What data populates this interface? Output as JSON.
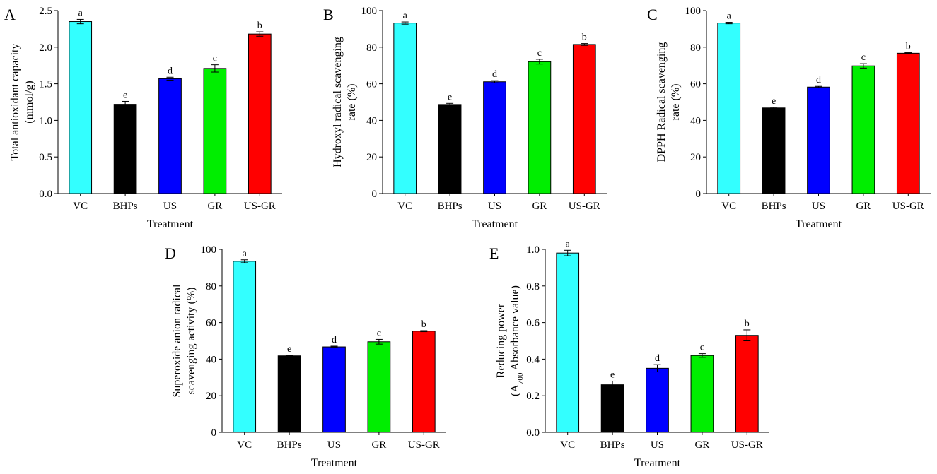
{
  "chart_data": [
    {
      "type": "bar",
      "panel": "A",
      "title": "",
      "xlabel": "Treatment",
      "ylabel": [
        "Total antioxidant capacity",
        "(mmol/g)"
      ],
      "categories": [
        "VC",
        "BHPs",
        "US",
        "GR",
        "US-GR"
      ],
      "values": [
        2.35,
        1.22,
        1.57,
        1.71,
        2.18
      ],
      "errors": [
        0.03,
        0.04,
        0.02,
        0.05,
        0.03
      ],
      "significance": [
        "a",
        "e",
        "d",
        "c",
        "b"
      ],
      "ylim": [
        0,
        2.5
      ],
      "yticks": [
        0.0,
        0.5,
        1.0,
        1.5,
        2.0,
        2.5
      ],
      "ytick_labels": [
        "0.0",
        "0.5",
        "1.0",
        "1.5",
        "2.0",
        "2.5"
      ],
      "colors": [
        "#33ffff",
        "#000000",
        "#0000ff",
        "#00ee00",
        "#ff0000"
      ]
    },
    {
      "type": "bar",
      "panel": "B",
      "title": "",
      "xlabel": "Treatment",
      "ylabel": [
        "Hydroxyl radical scavenging",
        "rate (%)"
      ],
      "categories": [
        "VC",
        "BHPs",
        "US",
        "GR",
        "US-GR"
      ],
      "values": [
        93.2,
        48.7,
        61.1,
        72.1,
        81.5
      ],
      "errors": [
        0.6,
        0.6,
        0.6,
        1.3,
        0.5
      ],
      "significance": [
        "a",
        "e",
        "d",
        "c",
        "b"
      ],
      "ylim": [
        0,
        100
      ],
      "yticks": [
        0,
        20,
        40,
        60,
        80,
        100
      ],
      "ytick_labels": [
        "0",
        "20",
        "40",
        "60",
        "80",
        "100"
      ],
      "colors": [
        "#33ffff",
        "#000000",
        "#0000ff",
        "#00ee00",
        "#ff0000"
      ]
    },
    {
      "type": "bar",
      "panel": "C",
      "title": "",
      "xlabel": "Treatment",
      "ylabel": [
        "DPPH Radical scavenging",
        "rate (%)"
      ],
      "categories": [
        "VC",
        "BHPs",
        "US",
        "GR",
        "US-GR"
      ],
      "values": [
        93.2,
        46.8,
        58.2,
        69.8,
        76.7
      ],
      "errors": [
        0.4,
        0.4,
        0.4,
        1.2,
        0.3
      ],
      "significance": [
        "a",
        "e",
        "d",
        "c",
        "b"
      ],
      "ylim": [
        0,
        100
      ],
      "yticks": [
        0,
        20,
        40,
        60,
        80,
        100
      ],
      "ytick_labels": [
        "0",
        "20",
        "40",
        "60",
        "80",
        "100"
      ],
      "colors": [
        "#33ffff",
        "#000000",
        "#0000ff",
        "#00ee00",
        "#ff0000"
      ]
    },
    {
      "type": "bar",
      "panel": "D",
      "title": "",
      "xlabel": "Treatment",
      "ylabel": [
        "Superoxide anion radical",
        "scavenging activity (%)"
      ],
      "categories": [
        "VC",
        "BHPs",
        "US",
        "GR",
        "US-GR"
      ],
      "values": [
        93.5,
        41.8,
        46.7,
        49.5,
        55.3
      ],
      "errors": [
        0.8,
        0.3,
        0.4,
        1.3,
        0.3
      ],
      "significance": [
        "a",
        "e",
        "d",
        "c",
        "b"
      ],
      "ylim": [
        0,
        100
      ],
      "yticks": [
        0,
        20,
        40,
        60,
        80,
        100
      ],
      "ytick_labels": [
        "0",
        "20",
        "40",
        "60",
        "80",
        "100"
      ],
      "colors": [
        "#33ffff",
        "#000000",
        "#0000ff",
        "#00ee00",
        "#ff0000"
      ]
    },
    {
      "type": "bar",
      "panel": "E",
      "title": "",
      "xlabel": "Treatment",
      "ylabel": [
        "Reducing power",
        "(A700 Absorbance value)"
      ],
      "categories": [
        "VC",
        "BHPs",
        "US",
        "GR",
        "US-GR"
      ],
      "values": [
        0.98,
        0.26,
        0.35,
        0.42,
        0.53
      ],
      "errors": [
        0.015,
        0.02,
        0.02,
        0.01,
        0.03
      ],
      "significance": [
        "a",
        "e",
        "d",
        "c",
        "b"
      ],
      "ylim": [
        0,
        1.0
      ],
      "yticks": [
        0.0,
        0.2,
        0.4,
        0.6,
        0.8,
        1.0
      ],
      "ytick_labels": [
        "0.0",
        "0.2",
        "0.4",
        "0.6",
        "0.8",
        "1.0"
      ],
      "colors": [
        "#33ffff",
        "#000000",
        "#0000ff",
        "#00ee00",
        "#ff0000"
      ]
    }
  ]
}
